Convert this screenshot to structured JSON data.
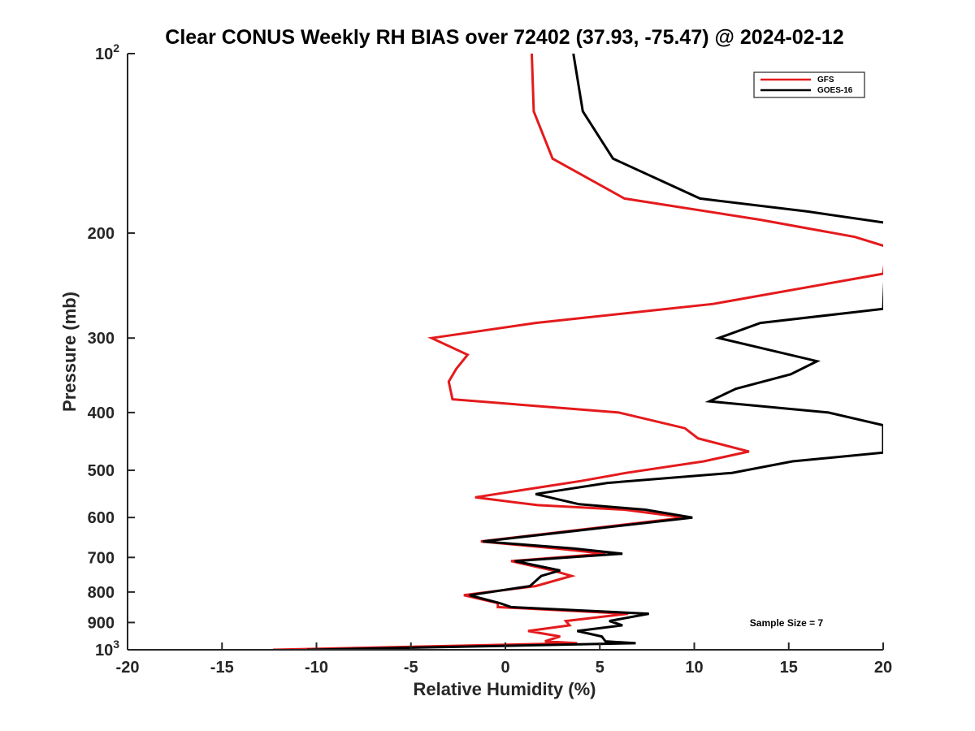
{
  "chart_data": {
    "type": "line",
    "title": "Clear CONUS Weekly RH BIAS over 72402 (37.93, -75.47) @ 2024-02-12",
    "xlabel": "Relative Humidity (%)",
    "ylabel": "Pressure (mb)",
    "xlim": [
      -20,
      20
    ],
    "ylim": [
      100,
      1000
    ],
    "yscale": "log",
    "y_reversed": true,
    "grid": false,
    "legend_position": "top-right",
    "annotation": "Sample Size = 7",
    "x_ticks": [
      -20,
      -15,
      -10,
      -5,
      0,
      5,
      10,
      15,
      20
    ],
    "x_tick_labels": [
      "-20",
      "-15",
      "-10",
      "-5",
      "0",
      "5",
      "10",
      "15",
      "20"
    ],
    "y_ticks": [
      {
        "value": 100,
        "base": "10",
        "exp": "2"
      },
      {
        "value": 200,
        "label": "200"
      },
      {
        "value": 300,
        "label": "300"
      },
      {
        "value": 400,
        "label": "400"
      },
      {
        "value": 500,
        "label": "500"
      },
      {
        "value": 600,
        "label": "600"
      },
      {
        "value": 700,
        "label": "700"
      },
      {
        "value": 800,
        "label": "800"
      },
      {
        "value": 900,
        "label": "900"
      },
      {
        "value": 1000,
        "base": "10",
        "exp": "3"
      }
    ],
    "series": [
      {
        "name": "GFS",
        "color": "#e41a1c",
        "points": [
          [
            1.4,
            100
          ],
          [
            1.5,
            125
          ],
          [
            2.5,
            150
          ],
          [
            6.3,
            175
          ],
          [
            13.5,
            190
          ],
          [
            18.5,
            203
          ],
          [
            20.0,
            210
          ],
          [
            20.2,
            210
          ],
          [
            20.0,
            234
          ],
          [
            18.7,
            238
          ],
          [
            11.0,
            263
          ],
          [
            1.6,
            283
          ],
          [
            -3.9,
            300
          ],
          [
            -2.0,
            320
          ],
          [
            -2.6,
            338
          ],
          [
            -3.0,
            355
          ],
          [
            -2.8,
            380
          ],
          [
            6.0,
            400
          ],
          [
            9.5,
            425
          ],
          [
            10.2,
            442
          ],
          [
            12.9,
            465
          ],
          [
            10.5,
            483
          ],
          [
            6.4,
            505
          ],
          [
            4.0,
            521
          ],
          [
            -1.6,
            555
          ],
          [
            1.7,
            572
          ],
          [
            6.3,
            582
          ],
          [
            9.5,
            600
          ],
          [
            -1.3,
            658
          ],
          [
            2.7,
            676
          ],
          [
            5.3,
            690
          ],
          [
            0.3,
            710
          ],
          [
            2.5,
            736
          ],
          [
            3.5,
            752
          ],
          [
            1.6,
            782
          ],
          [
            -2.2,
            810
          ],
          [
            -0.4,
            835
          ],
          [
            -0.4,
            848
          ],
          [
            6.5,
            870
          ],
          [
            3.2,
            895
          ],
          [
            3.4,
            910
          ],
          [
            1.2,
            930
          ],
          [
            2.9,
            950
          ],
          [
            2.1,
            968
          ],
          [
            3.8,
            975
          ],
          [
            -12.3,
            1000
          ]
        ]
      },
      {
        "name": "GOES-16",
        "color": "#000000",
        "points": [
          [
            3.6,
            100
          ],
          [
            4.1,
            125
          ],
          [
            5.7,
            150
          ],
          [
            10.3,
            175
          ],
          [
            16.0,
            184
          ],
          [
            20.0,
            192
          ],
          [
            20.2,
            192
          ],
          [
            20.0,
            268
          ],
          [
            13.5,
            283
          ],
          [
            11.3,
            300
          ],
          [
            16.5,
            328
          ],
          [
            15.1,
            345
          ],
          [
            12.2,
            365
          ],
          [
            10.8,
            383
          ],
          [
            17.1,
            400
          ],
          [
            20.0,
            420
          ],
          [
            20.0,
            467
          ],
          [
            15.2,
            483
          ],
          [
            12.0,
            505
          ],
          [
            5.4,
            525
          ],
          [
            1.6,
            548
          ],
          [
            3.9,
            570
          ],
          [
            7.4,
            582
          ],
          [
            9.9,
            600
          ],
          [
            -1.2,
            658
          ],
          [
            3.6,
            676
          ],
          [
            6.2,
            690
          ],
          [
            0.5,
            710
          ],
          [
            2.9,
            736
          ],
          [
            1.9,
            752
          ],
          [
            1.3,
            782
          ],
          [
            -1.9,
            810
          ],
          [
            -0.3,
            835
          ],
          [
            0.3,
            848
          ],
          [
            7.6,
            870
          ],
          [
            5.5,
            895
          ],
          [
            6.2,
            910
          ],
          [
            3.8,
            930
          ],
          [
            5.1,
            950
          ],
          [
            5.3,
            968
          ],
          [
            6.9,
            975
          ],
          [
            -10.5,
            1000
          ]
        ]
      }
    ]
  }
}
